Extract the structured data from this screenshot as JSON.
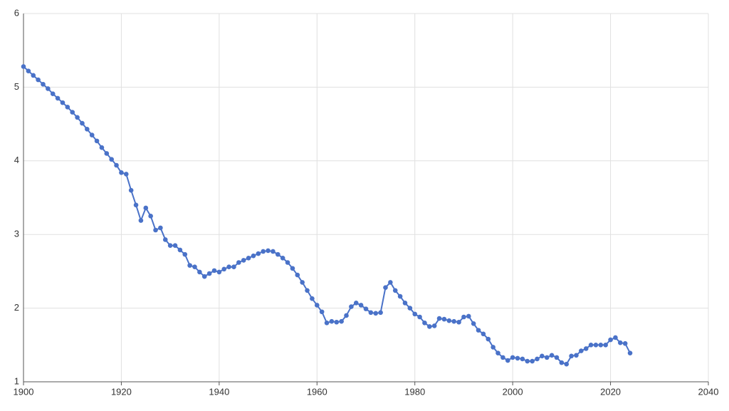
{
  "chart_data": {
    "type": "line",
    "x": [
      1900,
      1901,
      1902,
      1903,
      1904,
      1905,
      1906,
      1907,
      1908,
      1909,
      1910,
      1911,
      1912,
      1913,
      1914,
      1915,
      1916,
      1917,
      1918,
      1919,
      1920,
      1921,
      1922,
      1923,
      1924,
      1925,
      1926,
      1927,
      1928,
      1929,
      1930,
      1931,
      1932,
      1933,
      1934,
      1935,
      1936,
      1937,
      1938,
      1939,
      1940,
      1941,
      1942,
      1943,
      1944,
      1945,
      1946,
      1947,
      1948,
      1949,
      1950,
      1951,
      1952,
      1953,
      1954,
      1955,
      1956,
      1957,
      1958,
      1959,
      1960,
      1961,
      1962,
      1963,
      1964,
      1965,
      1966,
      1967,
      1968,
      1969,
      1970,
      1971,
      1972,
      1973,
      1974,
      1975,
      1976,
      1977,
      1978,
      1979,
      1980,
      1981,
      1982,
      1983,
      1984,
      1985,
      1986,
      1987,
      1988,
      1989,
      1990,
      1991,
      1992,
      1993,
      1994,
      1995,
      1996,
      1997,
      1998,
      1999,
      2000,
      2001,
      2002,
      2003,
      2004,
      2005,
      2006,
      2007,
      2008,
      2009,
      2010,
      2011,
      2012,
      2013,
      2014,
      2015,
      2016,
      2017,
      2018,
      2019,
      2020,
      2021,
      2022,
      2023,
      2024
    ],
    "series": [
      {
        "color": "#4a72c8",
        "values": [
          5.28,
          5.22,
          5.16,
          5.1,
          5.04,
          4.98,
          4.91,
          4.85,
          4.79,
          4.73,
          4.66,
          4.59,
          4.51,
          4.43,
          4.35,
          4.27,
          4.18,
          4.1,
          4.02,
          3.94,
          3.84,
          3.82,
          3.6,
          3.4,
          3.19,
          3.36,
          3.25,
          3.06,
          3.09,
          2.93,
          2.85,
          2.85,
          2.79,
          2.73,
          2.58,
          2.56,
          2.49,
          2.43,
          2.47,
          2.51,
          2.49,
          2.53,
          2.56,
          2.56,
          2.62,
          2.65,
          2.68,
          2.71,
          2.74,
          2.77,
          2.78,
          2.77,
          2.73,
          2.68,
          2.62,
          2.54,
          2.45,
          2.35,
          2.24,
          2.13,
          2.04,
          1.95,
          1.8,
          1.82,
          1.81,
          1.82,
          1.9,
          2.02,
          2.07,
          2.04,
          1.99,
          1.94,
          1.93,
          1.94,
          2.28,
          2.35,
          2.24,
          2.16,
          2.07,
          2.0,
          1.92,
          1.88,
          1.8,
          1.75,
          1.76,
          1.86,
          1.85,
          1.83,
          1.82,
          1.81,
          1.88,
          1.89,
          1.79,
          1.7,
          1.65,
          1.58,
          1.47,
          1.39,
          1.33,
          1.29,
          1.33,
          1.32,
          1.31,
          1.28,
          1.28,
          1.31,
          1.35,
          1.33,
          1.36,
          1.33,
          1.26,
          1.24,
          1.35,
          1.36,
          1.42,
          1.45,
          1.5,
          1.5,
          1.5,
          1.5,
          1.57,
          1.6,
          1.53,
          1.52,
          1.39
        ]
      }
    ],
    "xlim": [
      1900,
      2040
    ],
    "xticks": [
      1900,
      1920,
      1940,
      1960,
      1980,
      2000,
      2020,
      2040
    ],
    "ylim": [
      1,
      6
    ],
    "yticks": [
      1,
      2,
      3,
      4,
      5,
      6
    ],
    "grid": true
  }
}
